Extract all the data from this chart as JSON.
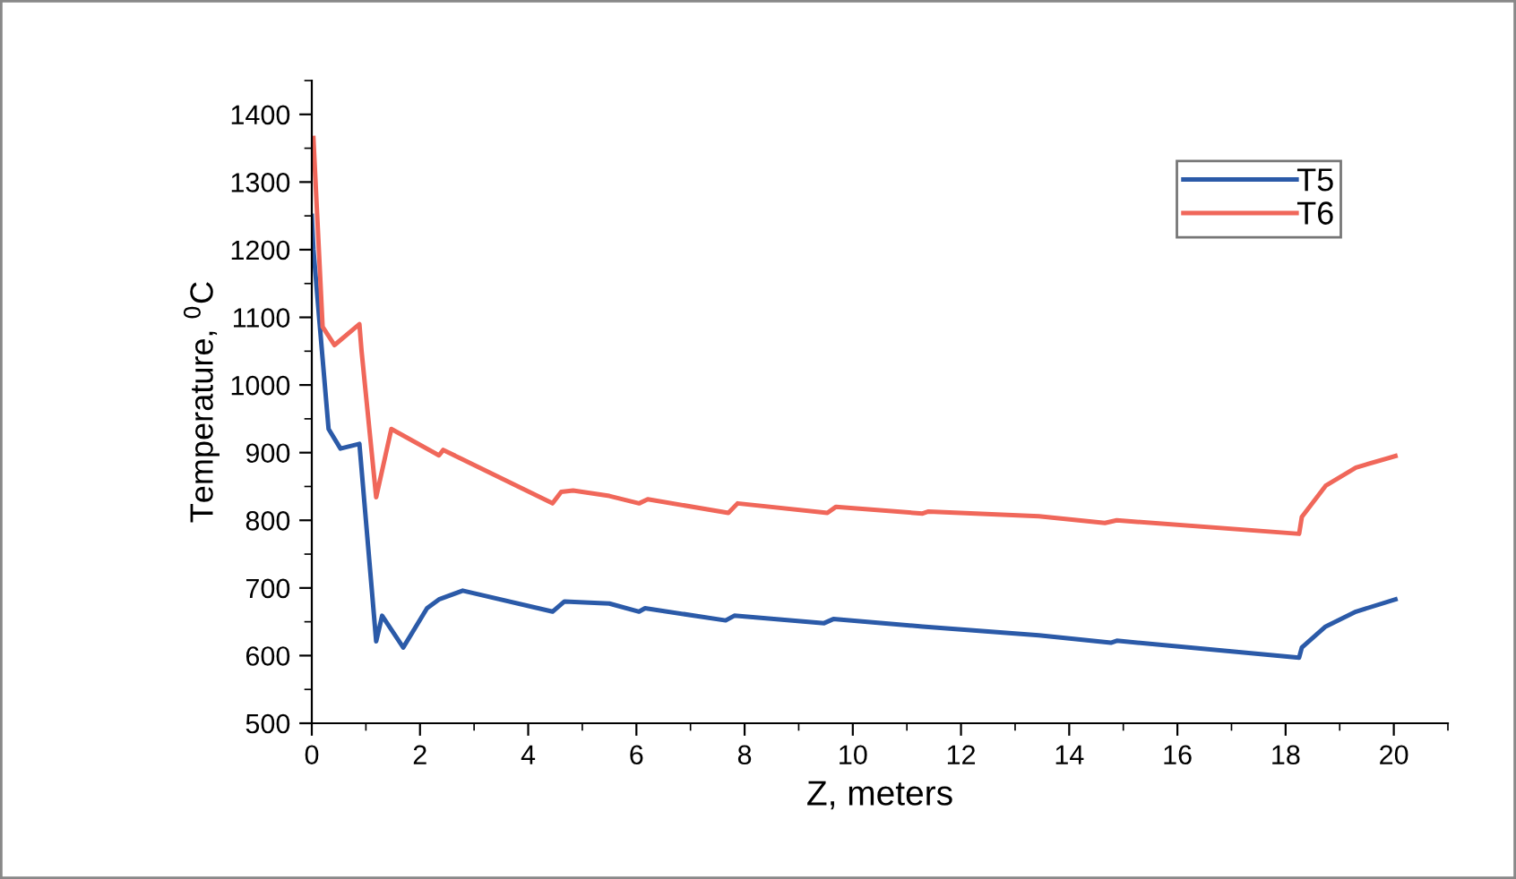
{
  "chart_data": {
    "type": "line",
    "xlabel": "Z, meters",
    "ylabel": "Temperature, $^{0}$C",
    "xlim": [
      0,
      21
    ],
    "ylim": [
      500,
      1450
    ],
    "xticks": [
      0,
      2,
      4,
      6,
      8,
      10,
      12,
      14,
      16,
      18,
      20
    ],
    "yticks": [
      500,
      600,
      700,
      800,
      900,
      1000,
      1100,
      1200,
      1300,
      1400
    ],
    "grid": false,
    "legend": "top right",
    "marker": "none",
    "line_style": "solid",
    "series": [
      {
        "name": "T5",
        "color": "#2b5aa8",
        "x": [
          0,
          0.03,
          0.14,
          0.31,
          0.53,
          0.88,
          1.19,
          1.3,
          1.69,
          2.13,
          2.35,
          2.79,
          4.45,
          4.67,
          5.5,
          6.05,
          6.16,
          7.65,
          7.81,
          9.47,
          9.64,
          11.29,
          13.44,
          14.77,
          14.88,
          18.25,
          18.3,
          18.74,
          19.3,
          20.03
        ],
        "values": [
          1250,
          1201,
          1095,
          935,
          906,
          913,
          621,
          659,
          612,
          670,
          683,
          696,
          665,
          680,
          677,
          665,
          670,
          652,
          659,
          648,
          654,
          643,
          630,
          619,
          622,
          597,
          612,
          643,
          665,
          683
        ]
      },
      {
        "name": "T6",
        "color": "#f0675a",
        "x": [
          0.03,
          0.2,
          0.42,
          0.88,
          0.92,
          1.19,
          1.47,
          2.35,
          2.43,
          4.45,
          4.61,
          4.83,
          5.5,
          6.05,
          6.21,
          7.7,
          7.87,
          9.53,
          9.69,
          11.29,
          11.4,
          13.44,
          14.66,
          14.88,
          18.25,
          18.3,
          18.74,
          19.3,
          20.03
        ],
        "values": [
          1365,
          1086,
          1059,
          1090,
          1050,
          834,
          935,
          896,
          904,
          825,
          842,
          844,
          836,
          825,
          831,
          811,
          825,
          811,
          820,
          810,
          813,
          806,
          796,
          800,
          780,
          805,
          851,
          878,
          895
        ]
      }
    ]
  }
}
